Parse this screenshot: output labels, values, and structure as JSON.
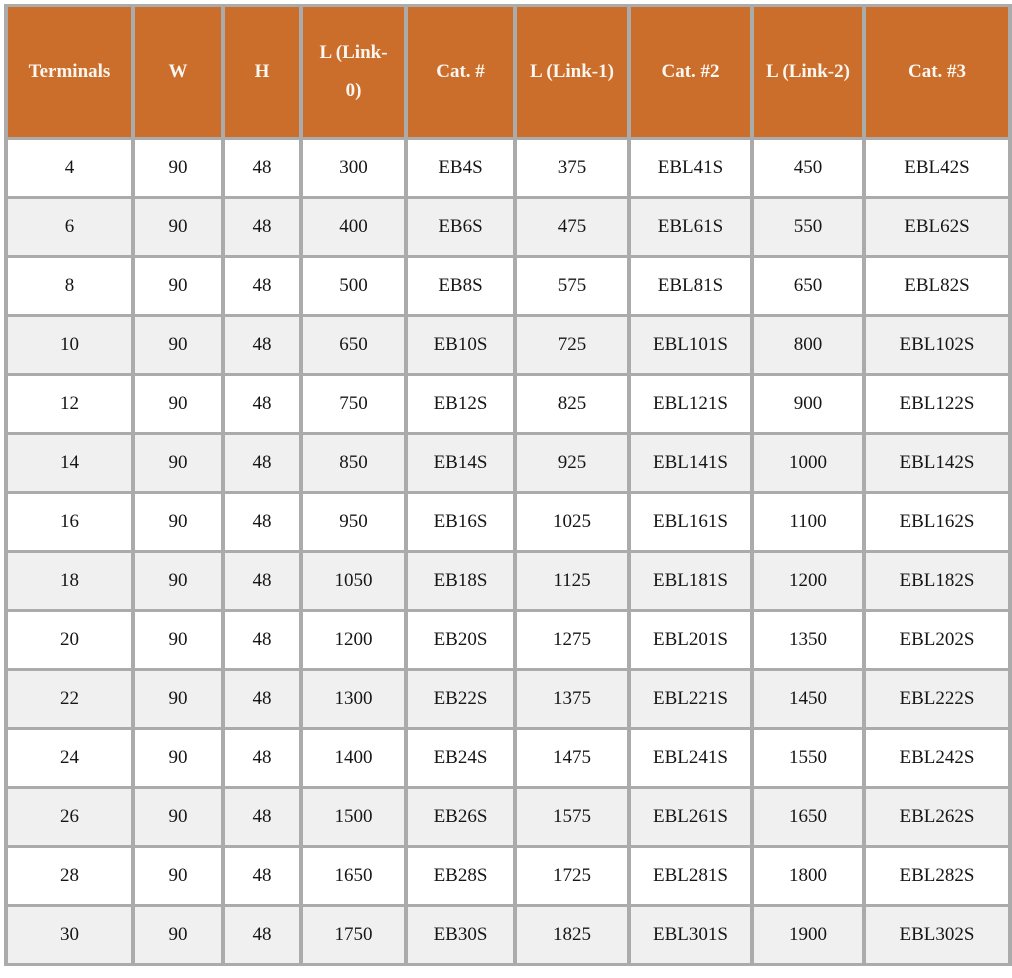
{
  "table": {
    "columns": [
      "Terminals",
      "W",
      "H",
      "L (Link-0)",
      "Cat. #",
      "L (Link-1)",
      "Cat. #2",
      "L (Link-2)",
      "Cat. #3"
    ],
    "rows": [
      [
        "4",
        "90",
        "48",
        "300",
        "EB4S",
        "375",
        "EBL41S",
        "450",
        "EBL42S"
      ],
      [
        "6",
        "90",
        "48",
        "400",
        "EB6S",
        "475",
        "EBL61S",
        "550",
        "EBL62S"
      ],
      [
        "8",
        "90",
        "48",
        "500",
        "EB8S",
        "575",
        "EBL81S",
        "650",
        "EBL82S"
      ],
      [
        "10",
        "90",
        "48",
        "650",
        "EB10S",
        "725",
        "EBL101S",
        "800",
        "EBL102S"
      ],
      [
        "12",
        "90",
        "48",
        "750",
        "EB12S",
        "825",
        "EBL121S",
        "900",
        "EBL122S"
      ],
      [
        "14",
        "90",
        "48",
        "850",
        "EB14S",
        "925",
        "EBL141S",
        "1000",
        "EBL142S"
      ],
      [
        "16",
        "90",
        "48",
        "950",
        "EB16S",
        "1025",
        "EBL161S",
        "1100",
        "EBL162S"
      ],
      [
        "18",
        "90",
        "48",
        "1050",
        "EB18S",
        "1125",
        "EBL181S",
        "1200",
        "EBL182S"
      ],
      [
        "20",
        "90",
        "48",
        "1200",
        "EB20S",
        "1275",
        "EBL201S",
        "1350",
        "EBL202S"
      ],
      [
        "22",
        "90",
        "48",
        "1300",
        "EB22S",
        "1375",
        "EBL221S",
        "1450",
        "EBL222S"
      ],
      [
        "24",
        "90",
        "48",
        "1400",
        "EB24S",
        "1475",
        "EBL241S",
        "1550",
        "EBL242S"
      ],
      [
        "26",
        "90",
        "48",
        "1500",
        "EB26S",
        "1575",
        "EBL261S",
        "1650",
        "EBL262S"
      ],
      [
        "28",
        "90",
        "48",
        "1650",
        "EB28S",
        "1725",
        "EBL281S",
        "1800",
        "EBL282S"
      ],
      [
        "30",
        "90",
        "48",
        "1750",
        "EB30S",
        "1825",
        "EBL301S",
        "1900",
        "EBL302S"
      ]
    ],
    "colors": {
      "header_bg": "#CB6E2B",
      "header_text": "#FBF6F0",
      "row_bg": "#FFFFFF",
      "row_alt_bg": "#F0F0F0",
      "border": "#ABABAB",
      "cell_text": "#161616"
    }
  }
}
